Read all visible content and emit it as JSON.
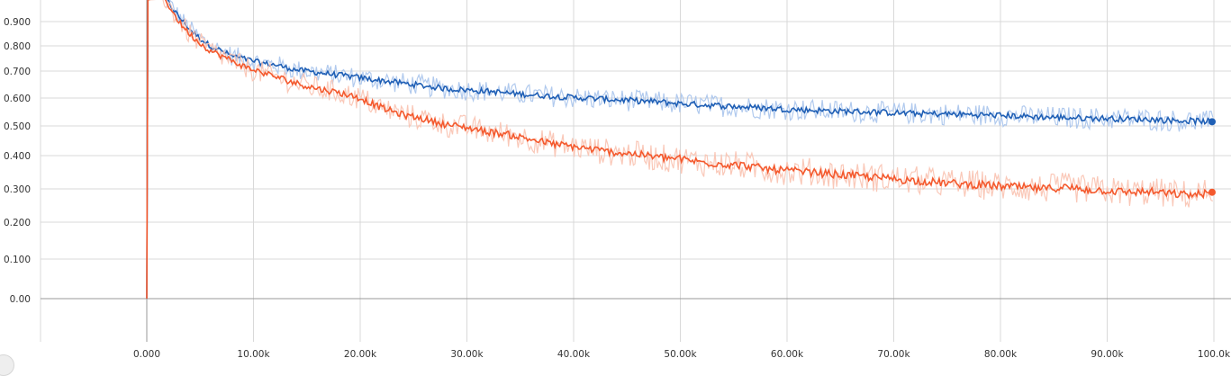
{
  "chart_data": {
    "type": "line",
    "title": "",
    "xlabel": "",
    "ylabel": "",
    "xlim": [
      -10000,
      100000
    ],
    "ylim": [
      -0.15,
      1.0
    ],
    "grid": true,
    "y_axis_scale": "log1p-compressed",
    "x_ticks": [
      {
        "value": 0,
        "label": "0.000"
      },
      {
        "value": 10000,
        "label": "10.00k"
      },
      {
        "value": 20000,
        "label": "20.00k"
      },
      {
        "value": 30000,
        "label": "30.00k"
      },
      {
        "value": 40000,
        "label": "40.00k"
      },
      {
        "value": 50000,
        "label": "50.00k"
      },
      {
        "value": 60000,
        "label": "60.00k"
      },
      {
        "value": 70000,
        "label": "70.00k"
      },
      {
        "value": 80000,
        "label": "80.00k"
      },
      {
        "value": 90000,
        "label": "90.00k"
      },
      {
        "value": 100000,
        "label": "100.0k"
      }
    ],
    "y_ticks": [
      {
        "value": 0.0,
        "label": "0.00"
      },
      {
        "value": 0.1,
        "label": "0.100"
      },
      {
        "value": 0.2,
        "label": "0.200"
      },
      {
        "value": 0.3,
        "label": "0.300"
      },
      {
        "value": 0.4,
        "label": "0.400"
      },
      {
        "value": 0.5,
        "label": "0.500"
      },
      {
        "value": 0.6,
        "label": "0.600"
      },
      {
        "value": 0.7,
        "label": "0.700"
      },
      {
        "value": 0.8,
        "label": "0.800"
      },
      {
        "value": 0.9,
        "label": "0.900"
      }
    ],
    "series": [
      {
        "color": "#1f5fb5",
        "raw_color": "#a9c4ec",
        "noise": 0.018,
        "x": [
          0,
          100,
          1000,
          2000,
          3000,
          4000,
          5000,
          6000,
          7000,
          8000,
          9000,
          10000,
          11000,
          12000,
          13000,
          14000,
          15000,
          16000,
          17000,
          18000,
          19000,
          20000,
          22000,
          24000,
          26000,
          28000,
          30000,
          32000,
          34000,
          36000,
          38000,
          40000,
          42000,
          44000,
          46000,
          48000,
          50000,
          52000,
          54000,
          56000,
          58000,
          60000,
          62000,
          64000,
          66000,
          68000,
          70000,
          72000,
          74000,
          76000,
          78000,
          80000,
          82000,
          84000,
          86000,
          88000,
          90000,
          92000,
          94000,
          96000,
          98000,
          100000
        ],
        "y": [
          0.0,
          1.1,
          1.05,
          0.98,
          0.92,
          0.87,
          0.83,
          0.8,
          0.78,
          0.76,
          0.75,
          0.74,
          0.73,
          0.725,
          0.715,
          0.705,
          0.7,
          0.695,
          0.69,
          0.685,
          0.68,
          0.675,
          0.665,
          0.655,
          0.645,
          0.635,
          0.63,
          0.625,
          0.618,
          0.612,
          0.607,
          0.602,
          0.598,
          0.594,
          0.59,
          0.586,
          0.58,
          0.576,
          0.572,
          0.568,
          0.564,
          0.56,
          0.557,
          0.554,
          0.552,
          0.55,
          0.547,
          0.545,
          0.543,
          0.542,
          0.54,
          0.538,
          0.535,
          0.532,
          0.53,
          0.528,
          0.527,
          0.525,
          0.524,
          0.52,
          0.518,
          0.515
        ]
      },
      {
        "color": "#f4592d",
        "raw_color": "#f9c2b0",
        "noise": 0.02,
        "x": [
          0,
          100,
          1000,
          2000,
          3000,
          4000,
          5000,
          6000,
          7000,
          8000,
          9000,
          10000,
          12000,
          14000,
          16000,
          18000,
          20000,
          22000,
          24000,
          26000,
          28000,
          30000,
          32000,
          34000,
          36000,
          38000,
          40000,
          42000,
          44000,
          46000,
          48000,
          50000,
          52000,
          54000,
          56000,
          58000,
          60000,
          62000,
          64000,
          66000,
          68000,
          70000,
          72000,
          74000,
          76000,
          78000,
          80000,
          82000,
          84000,
          86000,
          88000,
          90000,
          92000,
          94000,
          96000,
          98000,
          100000
        ],
        "y": [
          0.0,
          1.1,
          1.05,
          0.97,
          0.9,
          0.85,
          0.81,
          0.78,
          0.76,
          0.74,
          0.72,
          0.705,
          0.68,
          0.655,
          0.635,
          0.62,
          0.6,
          0.565,
          0.54,
          0.525,
          0.505,
          0.495,
          0.48,
          0.47,
          0.455,
          0.44,
          0.43,
          0.42,
          0.41,
          0.405,
          0.395,
          0.39,
          0.38,
          0.375,
          0.37,
          0.36,
          0.355,
          0.35,
          0.345,
          0.34,
          0.335,
          0.33,
          0.325,
          0.32,
          0.315,
          0.312,
          0.308,
          0.305,
          0.3,
          0.305,
          0.298,
          0.295,
          0.29,
          0.292,
          0.285,
          0.282,
          0.29
        ]
      }
    ]
  }
}
